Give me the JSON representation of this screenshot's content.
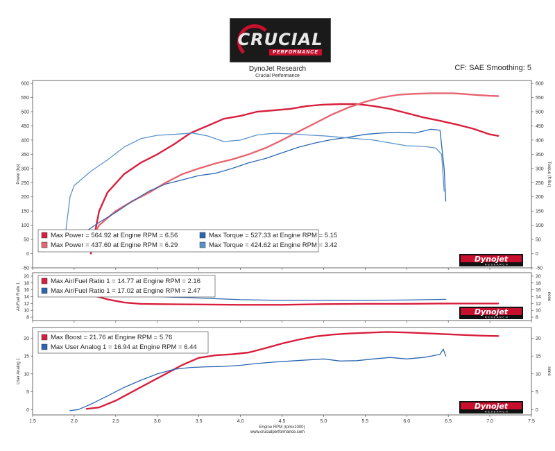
{
  "header": {
    "logo_word": "CRUCIAL",
    "logo_sub": "PERFORMANCE",
    "title": "DynoJet Research",
    "subtitle": "Crucial Performance",
    "cf_text": "CF: SAE Smoothing: 5",
    "badge_text": "Dynojet",
    "badge_sub": "RESEARCH"
  },
  "footer": {
    "url": "www.crucialperformance.com"
  },
  "colors": {
    "red": "#d81e3c",
    "pink": "#e86470",
    "blue_dark": "#2a66b0",
    "blue_light": "#5a92cc"
  },
  "chart_data": [
    {
      "type": "line",
      "id": "power",
      "ylabel": "Power (hp)",
      "ylabel_right": "Torque (ft·lbs)",
      "xlim": [
        1.5,
        7.5
      ],
      "ylim": [
        -50,
        610
      ],
      "yticks": [
        -50,
        0,
        50,
        100,
        150,
        200,
        250,
        300,
        350,
        400,
        450,
        500,
        550,
        600
      ],
      "legend": [
        "Max Power = 564.92 at Engine RPM = 6.56",
        "Max Power = 437.60 at Engine RPM = 6.29",
        "Max Torque = 527.33 at Engine RPM = 5.15",
        "Max Torque = 424.62 at Engine RPM = 3.42"
      ],
      "series": [
        {
          "color": "#d81e3c",
          "width": 2.4,
          "points": [
            [
              2.2,
              0
            ],
            [
              2.3,
              150
            ],
            [
              2.4,
              215
            ],
            [
              2.6,
              280
            ],
            [
              2.8,
              320
            ],
            [
              3.0,
              350
            ],
            [
              3.2,
              385
            ],
            [
              3.4,
              425
            ],
            [
              3.6,
              450
            ],
            [
              3.8,
              475
            ],
            [
              4.0,
              485
            ],
            [
              4.2,
              500
            ],
            [
              4.4,
              505
            ],
            [
              4.6,
              510
            ],
            [
              4.8,
              520
            ],
            [
              5.0,
              525
            ],
            [
              5.2,
              527
            ],
            [
              5.4,
              527
            ],
            [
              5.6,
              520
            ],
            [
              5.8,
              510
            ],
            [
              6.0,
              495
            ],
            [
              6.2,
              480
            ],
            [
              6.4,
              468
            ],
            [
              6.6,
              455
            ],
            [
              6.8,
              440
            ],
            [
              7.0,
              420
            ],
            [
              7.1,
              415
            ]
          ]
        },
        {
          "color": "#e86470",
          "width": 2.4,
          "points": [
            [
              2.15,
              30
            ],
            [
              2.3,
              100
            ],
            [
              2.5,
              150
            ],
            [
              2.7,
              185
            ],
            [
              2.9,
              215
            ],
            [
              3.1,
              250
            ],
            [
              3.3,
              280
            ],
            [
              3.5,
              300
            ],
            [
              3.7,
              318
            ],
            [
              3.9,
              332
            ],
            [
              4.1,
              350
            ],
            [
              4.3,
              372
            ],
            [
              4.5,
              400
            ],
            [
              4.7,
              430
            ],
            [
              4.9,
              460
            ],
            [
              5.1,
              490
            ],
            [
              5.3,
              515
            ],
            [
              5.5,
              535
            ],
            [
              5.7,
              550
            ],
            [
              5.9,
              560
            ],
            [
              6.1,
              563
            ],
            [
              6.3,
              565
            ],
            [
              6.56,
              565
            ],
            [
              6.8,
              560
            ],
            [
              7.0,
              556
            ],
            [
              7.1,
              555
            ]
          ]
        },
        {
          "color": "#2a66b0",
          "width": 1.3,
          "points": [
            [
              1.95,
              40
            ],
            [
              2.1,
              70
            ],
            [
              2.3,
              110
            ],
            [
              2.5,
              145
            ],
            [
              2.7,
              185
            ],
            [
              2.9,
              220
            ],
            [
              3.1,
              245
            ],
            [
              3.3,
              260
            ],
            [
              3.5,
              275
            ],
            [
              3.7,
              283
            ],
            [
              3.9,
              300
            ],
            [
              4.1,
              320
            ],
            [
              4.3,
              335
            ],
            [
              4.5,
              355
            ],
            [
              4.7,
              375
            ],
            [
              4.9,
              390
            ],
            [
              5.1,
              402
            ],
            [
              5.3,
              410
            ],
            [
              5.5,
              420
            ],
            [
              5.7,
              425
            ],
            [
              5.9,
              428
            ],
            [
              6.1,
              425
            ],
            [
              6.29,
              438
            ],
            [
              6.4,
              435
            ],
            [
              6.45,
              300
            ],
            [
              6.47,
              185
            ]
          ]
        },
        {
          "color": "#5a92cc",
          "width": 1.3,
          "points": [
            [
              1.9,
              80
            ],
            [
              1.95,
              200
            ],
            [
              2.0,
              240
            ],
            [
              2.2,
              290
            ],
            [
              2.4,
              330
            ],
            [
              2.6,
              375
            ],
            [
              2.8,
              405
            ],
            [
              3.0,
              417
            ],
            [
              3.2,
              420
            ],
            [
              3.42,
              425
            ],
            [
              3.6,
              415
            ],
            [
              3.8,
              395
            ],
            [
              4.0,
              400
            ],
            [
              4.2,
              418
            ],
            [
              4.4,
              424
            ],
            [
              4.6,
              422
            ],
            [
              4.8,
              418
            ],
            [
              5.0,
              415
            ],
            [
              5.2,
              410
            ],
            [
              5.4,
              405
            ],
            [
              5.6,
              400
            ],
            [
              5.8,
              390
            ],
            [
              6.0,
              380
            ],
            [
              6.2,
              378
            ],
            [
              6.35,
              372
            ],
            [
              6.42,
              350
            ],
            [
              6.45,
              220
            ]
          ]
        }
      ]
    },
    {
      "type": "line",
      "id": "afr",
      "ylabel": "Air/Fuel Ratio 1",
      "ylabel_right": "none",
      "xlim": [
        1.5,
        7.5
      ],
      "ylim": [
        7,
        21
      ],
      "yticks": [
        8,
        10,
        12,
        14,
        16,
        18,
        20
      ],
      "legend": [
        "Max Air/Fuel Ratio 1 = 14.77 at Engine RPM = 2.16",
        "Max Air/Fuel Ratio 1 = 17.02 at Engine RPM = 2.47"
      ],
      "series": [
        {
          "color": "#d81e3c",
          "width": 2.4,
          "points": [
            [
              2.16,
              14.77
            ],
            [
              2.4,
              13.2
            ],
            [
              2.6,
              12.3
            ],
            [
              2.8,
              11.9
            ],
            [
              3.0,
              11.8
            ],
            [
              3.5,
              11.7
            ],
            [
              4.0,
              11.6
            ],
            [
              4.5,
              11.6
            ],
            [
              5.0,
              11.8
            ],
            [
              5.5,
              11.9
            ],
            [
              6.0,
              11.9
            ],
            [
              6.5,
              12.0
            ],
            [
              7.1,
              12.0
            ]
          ]
        },
        {
          "color": "#2a66b0",
          "width": 1.3,
          "points": [
            [
              2.47,
              17.02
            ],
            [
              2.6,
              15.5
            ],
            [
              2.8,
              14.5
            ],
            [
              3.0,
              14.0
            ],
            [
              3.5,
              13.6
            ],
            [
              4.0,
              13.1
            ],
            [
              4.5,
              12.9
            ],
            [
              5.0,
              12.9
            ],
            [
              5.5,
              12.9
            ],
            [
              6.0,
              13.0
            ],
            [
              6.47,
              13.2
            ]
          ]
        }
      ]
    },
    {
      "type": "line",
      "id": "boost",
      "ylabel": "User Analog 1",
      "ylabel_right": "none",
      "xlabel": "Engine RPM (rpmx1000)",
      "xlim": [
        1.5,
        7.5
      ],
      "ylim": [
        -1.5,
        23
      ],
      "yticks": [
        0,
        5,
        10,
        15,
        20
      ],
      "xticks": [
        1.5,
        2.0,
        2.5,
        3.0,
        3.5,
        4.0,
        4.5,
        5.0,
        5.5,
        6.0,
        6.5,
        7.0,
        7.5
      ],
      "legend": [
        "Max Boost = 21.76 at Engine RPM = 5.76",
        "Max User Analog 1 = 16.94 at Engine RPM = 6.44"
      ],
      "series": [
        {
          "color": "#d81e3c",
          "width": 2.4,
          "points": [
            [
              2.15,
              0.2
            ],
            [
              2.3,
              0.6
            ],
            [
              2.5,
              2.5
            ],
            [
              2.7,
              5.0
            ],
            [
              2.9,
              7.5
            ],
            [
              3.1,
              10.0
            ],
            [
              3.3,
              12.5
            ],
            [
              3.5,
              14.5
            ],
            [
              3.7,
              15.2
            ],
            [
              3.9,
              15.5
            ],
            [
              4.1,
              16.0
            ],
            [
              4.3,
              17.2
            ],
            [
              4.5,
              18.5
            ],
            [
              4.7,
              19.6
            ],
            [
              4.9,
              20.5
            ],
            [
              5.1,
              21.0
            ],
            [
              5.3,
              21.3
            ],
            [
              5.5,
              21.5
            ],
            [
              5.76,
              21.76
            ],
            [
              6.0,
              21.6
            ],
            [
              6.3,
              21.3
            ],
            [
              6.6,
              21.0
            ],
            [
              6.9,
              20.7
            ],
            [
              7.1,
              20.6
            ]
          ]
        },
        {
          "color": "#2a66b0",
          "width": 1.3,
          "points": [
            [
              1.95,
              -0.3
            ],
            [
              2.05,
              0
            ],
            [
              2.2,
              1.5
            ],
            [
              2.4,
              3.8
            ],
            [
              2.6,
              6.2
            ],
            [
              2.8,
              8.2
            ],
            [
              3.0,
              10.0
            ],
            [
              3.2,
              11.3
            ],
            [
              3.4,
              11.8
            ],
            [
              3.6,
              12.0
            ],
            [
              3.8,
              12.1
            ],
            [
              4.0,
              12.4
            ],
            [
              4.2,
              12.9
            ],
            [
              4.4,
              13.3
            ],
            [
              4.6,
              13.6
            ],
            [
              4.8,
              13.9
            ],
            [
              5.0,
              14.2
            ],
            [
              5.2,
              13.6
            ],
            [
              5.4,
              13.7
            ],
            [
              5.6,
              14.2
            ],
            [
              5.8,
              14.6
            ],
            [
              6.0,
              14.2
            ],
            [
              6.2,
              14.6
            ],
            [
              6.3,
              15.0
            ],
            [
              6.4,
              15.5
            ],
            [
              6.44,
              16.94
            ],
            [
              6.47,
              15.0
            ]
          ]
        }
      ]
    }
  ]
}
